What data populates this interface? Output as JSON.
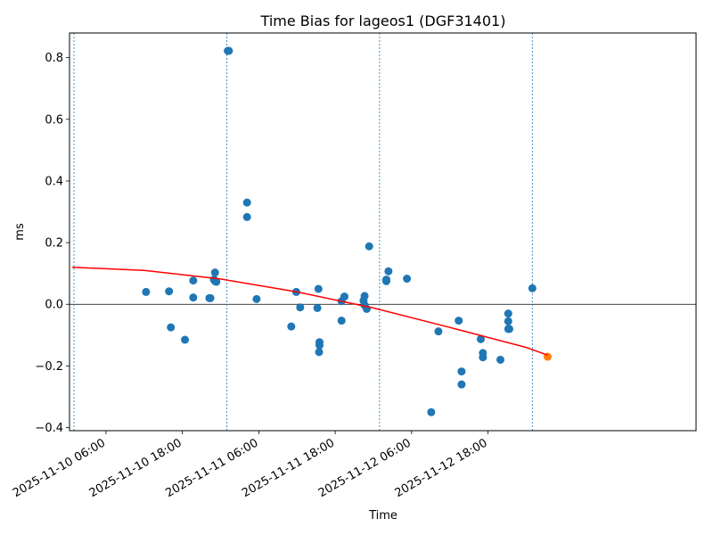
{
  "chart_data": {
    "type": "scatter",
    "title": "Time Bias for lageos1 (DGF31401)",
    "xlabel": "Time",
    "ylabel": "ms",
    "x_axis_type": "time",
    "xlim": [
      "2025-11-10 00:16",
      "2025-11-14 02:41"
    ],
    "ylim": [
      -0.41,
      0.88
    ],
    "x_ticks": [
      {
        "value": "2025-11-10 06:00",
        "label": "2025-11-10 06:00"
      },
      {
        "value": "2025-11-10 18:00",
        "label": "2025-11-10 18:00"
      },
      {
        "value": "2025-11-11 06:00",
        "label": "2025-11-11 06:00"
      },
      {
        "value": "2025-11-11 18:00",
        "label": "2025-11-11 18:00"
      },
      {
        "value": "2025-11-12 06:00",
        "label": "2025-11-12 06:00"
      },
      {
        "value": "2025-11-12 18:00",
        "label": "2025-11-12 18:00"
      }
    ],
    "y_ticks": [
      {
        "value": 0.8,
        "label": "0.8"
      },
      {
        "value": 0.6,
        "label": "0.6"
      },
      {
        "value": 0.4,
        "label": "0.4"
      },
      {
        "value": 0.2,
        "label": "0.2"
      },
      {
        "value": 0.0,
        "label": "0.0"
      },
      {
        "value": -0.2,
        "label": "−0.2"
      },
      {
        "value": -0.4,
        "label": "−0.4"
      }
    ],
    "zero_line": 0,
    "vertical_lines": [
      "2025-11-10 00:58",
      "2025-11-11 00:58",
      "2025-11-12 00:58",
      "2025-11-13 00:58"
    ],
    "grid": false,
    "series": [
      {
        "kind": "points",
        "color": "#1f77b4",
        "points": [
          {
            "x": "2025-11-10 12:17",
            "y": 0.04
          },
          {
            "x": "2025-11-10 15:54",
            "y": 0.042
          },
          {
            "x": "2025-11-10 16:11",
            "y": -0.075
          },
          {
            "x": "2025-11-10 18:24",
            "y": -0.115
          },
          {
            "x": "2025-11-10 19:42",
            "y": 0.077
          },
          {
            "x": "2025-11-10 19:42",
            "y": 0.022
          },
          {
            "x": "2025-11-10 22:14",
            "y": 0.02
          },
          {
            "x": "2025-11-10 22:24",
            "y": 0.02
          },
          {
            "x": "2025-11-10 22:57",
            "y": 0.08
          },
          {
            "x": "2025-11-10 23:07",
            "y": 0.103
          },
          {
            "x": "2025-11-10 23:07",
            "y": 0.075
          },
          {
            "x": "2025-11-10 23:20",
            "y": 0.073
          },
          {
            "x": "2025-11-11 01:08",
            "y": 0.822
          },
          {
            "x": "2025-11-11 01:18",
            "y": 0.822
          },
          {
            "x": "2025-11-11 04:09",
            "y": 0.33
          },
          {
            "x": "2025-11-11 04:09",
            "y": 0.283
          },
          {
            "x": "2025-11-11 05:39",
            "y": 0.017
          },
          {
            "x": "2025-11-11 11:06",
            "y": -0.072
          },
          {
            "x": "2025-11-11 11:53",
            "y": 0.04
          },
          {
            "x": "2025-11-11 12:30",
            "y": -0.01
          },
          {
            "x": "2025-11-11 15:12",
            "y": -0.012
          },
          {
            "x": "2025-11-11 15:22",
            "y": 0.05
          },
          {
            "x": "2025-11-11 15:32",
            "y": -0.123
          },
          {
            "x": "2025-11-11 15:32",
            "y": -0.133
          },
          {
            "x": "2025-11-11 15:28",
            "y": -0.155
          },
          {
            "x": "2025-11-11 19:00",
            "y": -0.053
          },
          {
            "x": "2025-11-11 19:00",
            "y": 0.01
          },
          {
            "x": "2025-11-11 19:27",
            "y": 0.025
          },
          {
            "x": "2025-11-11 22:27",
            "y": 0.012
          },
          {
            "x": "2025-11-11 22:37",
            "y": 0.027
          },
          {
            "x": "2025-11-11 22:37",
            "y": -0.003
          },
          {
            "x": "2025-11-11 22:57",
            "y": -0.015
          },
          {
            "x": "2025-11-11 23:20",
            "y": 0.188
          },
          {
            "x": "2025-11-12 02:02",
            "y": 0.08
          },
          {
            "x": "2025-11-12 02:02",
            "y": 0.075
          },
          {
            "x": "2025-11-12 02:22",
            "y": 0.107
          },
          {
            "x": "2025-11-12 05:16",
            "y": 0.083
          },
          {
            "x": "2025-11-12 09:05",
            "y": -0.35
          },
          {
            "x": "2025-11-12 10:13",
            "y": -0.088
          },
          {
            "x": "2025-11-12 13:24",
            "y": -0.053
          },
          {
            "x": "2025-11-12 13:51",
            "y": -0.218
          },
          {
            "x": "2025-11-12 13:51",
            "y": -0.26
          },
          {
            "x": "2025-11-12 16:52",
            "y": -0.113
          },
          {
            "x": "2025-11-12 17:12",
            "y": -0.158
          },
          {
            "x": "2025-11-12 17:12",
            "y": -0.172
          },
          {
            "x": "2025-11-12 19:57",
            "y": -0.18
          },
          {
            "x": "2025-11-12 21:11",
            "y": -0.03
          },
          {
            "x": "2025-11-12 21:11",
            "y": -0.055
          },
          {
            "x": "2025-11-12 21:11",
            "y": -0.08
          },
          {
            "x": "2025-11-12 21:21",
            "y": -0.08
          },
          {
            "x": "2025-11-13 00:58",
            "y": 0.052
          }
        ]
      },
      {
        "kind": "points",
        "color": "#ff7f0e",
        "points": [
          {
            "x": "2025-11-13 03:22",
            "y": -0.17
          }
        ]
      },
      {
        "kind": "line",
        "color": "#ff0000",
        "points": [
          {
            "x": "2025-11-10 00:41",
            "y": 0.12
          },
          {
            "x": "2025-11-10 12:00",
            "y": 0.11
          },
          {
            "x": "2025-11-11 00:00",
            "y": 0.082
          },
          {
            "x": "2025-11-11 12:00",
            "y": 0.04
          },
          {
            "x": "2025-11-12 00:00",
            "y": -0.012
          },
          {
            "x": "2025-11-12 12:00",
            "y": -0.075
          },
          {
            "x": "2025-11-13 00:00",
            "y": -0.14
          },
          {
            "x": "2025-11-13 03:22",
            "y": -0.165
          }
        ]
      }
    ]
  }
}
